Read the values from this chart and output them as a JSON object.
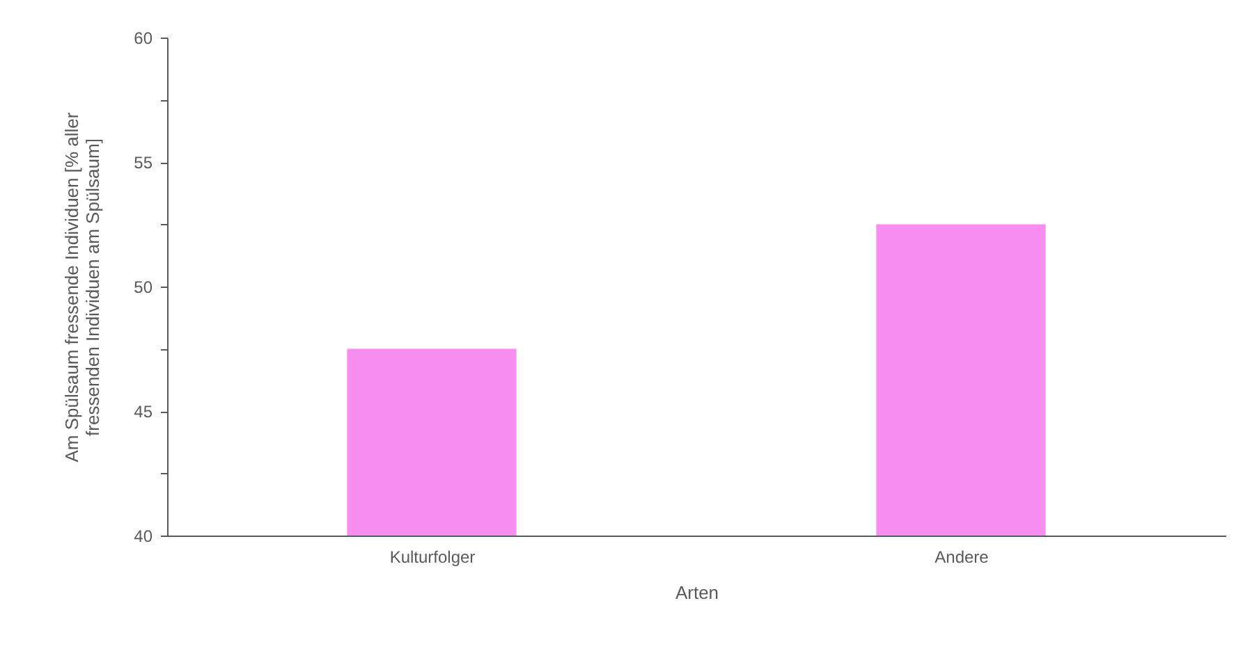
{
  "chart_data": {
    "type": "bar",
    "xlabel": "Arten",
    "ylabel": "Am Spülsaum fressende Individuen [% aller\nfressenden Individuen am Spülsaum]",
    "categories": [
      "Kulturfolger",
      "Andere"
    ],
    "values": [
      47.5,
      52.5
    ],
    "color": "#f78ef0",
    "ylim": [
      40,
      60
    ],
    "yticks": [
      40,
      {
        "value": 42.5,
        "label": null
      },
      45,
      {
        "value": 47.5,
        "label": null
      },
      50,
      {
        "value": 52.5,
        "label": null
      },
      55,
      {
        "value": 57.5,
        "label": null
      },
      60
    ],
    "grid": false
  }
}
